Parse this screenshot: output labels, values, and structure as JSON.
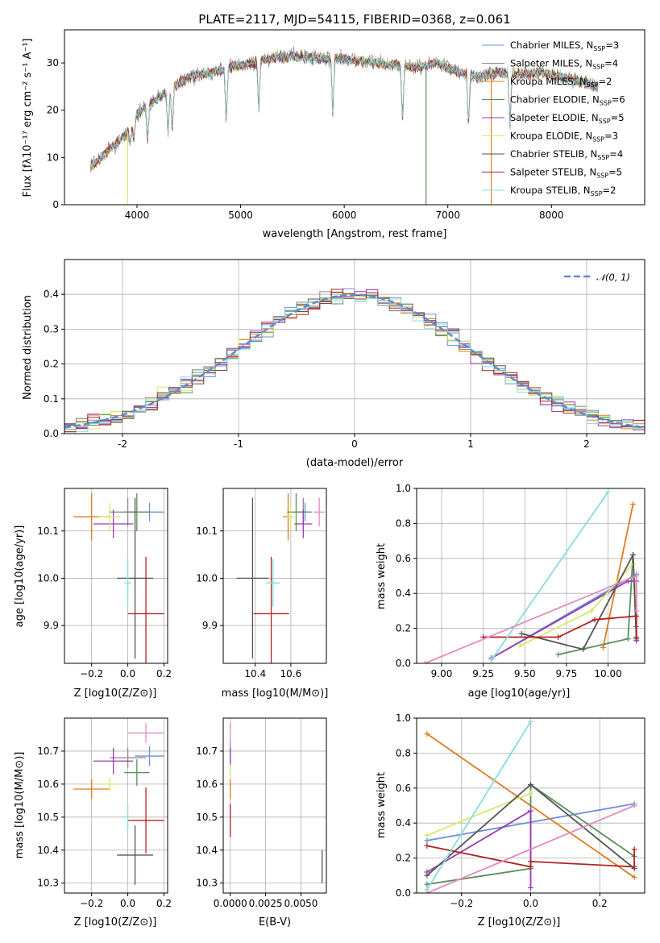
{
  "colors": [
    "#6a8fdc",
    "#8a8a8a",
    "#e07b1f",
    "#5b8f5b",
    "#9b39b0",
    "#d6e86a",
    "#555555",
    "#b22222",
    "#86dce0"
  ],
  "extra_color": "#e58ac0",
  "chart_data": [
    {
      "id": "spectrum",
      "type": "line",
      "title": "PLATE=2117, MJD=54115, FIBERID=0368, z=0.061",
      "xlabel": "wavelength [Angstrom, rest frame]",
      "ylabel": "Flux [fλ10⁻¹⁷ erg cm⁻² s⁻¹ A⁻¹]",
      "xlim": [
        3300,
        8900
      ],
      "ylim": [
        0,
        37
      ],
      "xticks": [
        4000,
        5000,
        6000,
        7000,
        8000
      ],
      "yticks": [
        0,
        10,
        20,
        30
      ],
      "grid": false,
      "legend": "top-right",
      "legend_entries": [
        "Chabrier MILES, NSSP=3",
        "Salpeter MILES, NSSP=4",
        "Kroupa MILES, NSSP=2",
        "Chabrier ELODIE, NSSP=6",
        "Salpeter ELODIE, NSSP=5",
        "Kroupa ELODIE, NSSP=3",
        "Chabrier STELIB, NSSP=4",
        "Salpeter STELIB, NSSP=5",
        "Kroupa STELIB, NSSP=2"
      ],
      "continuum_x": [
        3550,
        3700,
        3900,
        4000,
        4100,
        4300,
        4500,
        4700,
        4900,
        5100,
        5300,
        5500,
        5700,
        5900,
        6100,
        6300,
        6500,
        6700,
        6900,
        7100,
        7300,
        7500,
        7700,
        7900,
        8100,
        8300,
        8450
      ],
      "continuum_y": [
        8,
        11,
        15,
        19,
        21,
        24,
        27,
        28,
        29,
        30,
        31,
        31.5,
        31,
        31,
        30.5,
        30,
        29.5,
        29,
        30,
        28,
        27,
        28,
        27.5,
        28,
        27,
        26,
        25
      ]
    },
    {
      "id": "residuals",
      "type": "line",
      "xlabel": "(data-model)/error",
      "ylabel": "Normed distribution",
      "xlim": [
        -2.5,
        2.5
      ],
      "ylim": [
        0,
        0.5
      ],
      "xticks": [
        -2,
        -1,
        0,
        1,
        2
      ],
      "yticks": [
        0,
        0.1,
        0.2,
        0.3,
        0.4
      ],
      "grid": true,
      "legend": "top-right",
      "legend_entries": [
        "𝒩(0, 1)"
      ]
    },
    {
      "id": "age_vs_Z",
      "type": "scatter",
      "xlabel": "Z [log10(Z/Z⊙)]",
      "ylabel": "age  [log10(age/yr)]",
      "xlim": [
        -0.35,
        0.22
      ],
      "ylim": [
        9.82,
        10.19
      ],
      "xticks": [
        -0.2,
        0.0,
        0.2
      ],
      "yticks": [
        9.9,
        10.0,
        10.1
      ],
      "grid": true,
      "points": [
        {
          "x": 0.12,
          "y": 10.14,
          "xerr": 0.08,
          "yerr": 0.02,
          "c": 0
        },
        {
          "x": 0.0,
          "y": 10.14,
          "xerr": 0.1,
          "yerr": 0.03,
          "c": 1
        },
        {
          "x": -0.2,
          "y": 10.13,
          "xerr": 0.1,
          "yerr": 0.05,
          "c": 2
        },
        {
          "x": 0.05,
          "y": 10.14,
          "xerr": 0.07,
          "yerr": 0.04,
          "c": 3
        },
        {
          "x": -0.08,
          "y": 10.115,
          "xerr": 0.11,
          "yerr": 0.03,
          "c": 4
        },
        {
          "x": -0.1,
          "y": 10.13,
          "xerr": 0.06,
          "yerr": 0.03,
          "c": 5
        },
        {
          "x": 0.04,
          "y": 10.0,
          "xerr": 0.1,
          "yerr": 0.17,
          "c": 6
        },
        {
          "x": 0.1,
          "y": 9.925,
          "xerr": 0.1,
          "yerr": 0.12,
          "c": 7
        },
        {
          "x": 0.0,
          "y": 9.99,
          "xerr": 0.02,
          "yerr": 0.05,
          "c": 8
        }
      ]
    },
    {
      "id": "age_vs_mass",
      "type": "scatter",
      "xlabel": "mass [log10(M/M⊙)]",
      "ylabel": "",
      "xlim": [
        10.22,
        10.8
      ],
      "ylim": [
        9.82,
        10.19
      ],
      "xticks": [
        10.4,
        10.6
      ],
      "yticks": [
        9.9,
        10.0,
        10.1
      ],
      "grid": true,
      "points": [
        {
          "x": 10.68,
          "y": 10.14,
          "xerr": 0.04,
          "yerr": 0.02,
          "c": 0
        },
        {
          "x": 10.67,
          "y": 10.14,
          "xerr": 0.04,
          "yerr": 0.03,
          "c": 1
        },
        {
          "x": 10.585,
          "y": 10.13,
          "xerr": 0.03,
          "yerr": 0.05,
          "c": 2
        },
        {
          "x": 10.63,
          "y": 10.14,
          "xerr": 0.05,
          "yerr": 0.04,
          "c": 3
        },
        {
          "x": 10.67,
          "y": 10.115,
          "xerr": 0.05,
          "yerr": 0.03,
          "c": 4
        },
        {
          "x": 10.6,
          "y": 10.13,
          "xerr": 0.02,
          "yerr": 0.03,
          "c": 5
        },
        {
          "x": 10.76,
          "y": 10.14,
          "xerr": 0.03,
          "yerr": 0.03,
          "c": 9
        },
        {
          "x": 10.385,
          "y": 10.0,
          "xerr": 0.09,
          "yerr": 0.17,
          "c": 6
        },
        {
          "x": 10.49,
          "y": 9.925,
          "xerr": 0.1,
          "yerr": 0.12,
          "c": 7
        },
        {
          "x": 10.5,
          "y": 9.99,
          "xerr": 0.04,
          "yerr": 0.05,
          "c": 8
        }
      ]
    },
    {
      "id": "weight_vs_age",
      "type": "line",
      "xlabel": "age  [log10(age/yr)]",
      "ylabel": "mass weight",
      "xlim": [
        8.85,
        10.22
      ],
      "ylim": [
        0,
        1
      ],
      "xticks": [
        9.0,
        9.25,
        9.5,
        9.75,
        10.0
      ],
      "yticks": [
        0.0,
        0.2,
        0.4,
        0.6,
        0.8,
        1.0
      ],
      "grid": true,
      "series": [
        {
          "c": 0,
          "x": [
            9.3,
            10.17,
            10.17
          ],
          "y": [
            0.03,
            0.51,
            0.13
          ]
        },
        {
          "c": 2,
          "x": [
            9.97,
            10.15
          ],
          "y": [
            0.09,
            0.91
          ]
        },
        {
          "c": 3,
          "x": [
            9.7,
            10.12,
            10.15,
            10.17
          ],
          "y": [
            0.05,
            0.14,
            0.62,
            0.21
          ]
        },
        {
          "c": 4,
          "x": [
            9.3,
            10.12,
            10.17,
            10.17
          ],
          "y": [
            0.03,
            0.47,
            0.47,
            0.13
          ]
        },
        {
          "c": 5,
          "x": [
            9.47,
            9.9,
            10.15,
            10.17
          ],
          "y": [
            0.1,
            0.3,
            0.57,
            0.33
          ]
        },
        {
          "c": 6,
          "x": [
            9.48,
            9.85,
            10.15,
            10.17
          ],
          "y": [
            0.17,
            0.08,
            0.62,
            0.14
          ]
        },
        {
          "c": 7,
          "x": [
            9.25,
            9.7,
            9.92,
            10.17,
            10.17
          ],
          "y": [
            0.15,
            0.15,
            0.25,
            0.27,
            0.15
          ]
        },
        {
          "c": 8,
          "x": [
            9.3,
            10.0
          ],
          "y": [
            0.02,
            0.98
          ]
        },
        {
          "c": 9,
          "x": [
            8.9,
            10.17,
            10.17
          ],
          "y": [
            0.0,
            0.5,
            0.3
          ]
        }
      ]
    },
    {
      "id": "mass_vs_Z",
      "type": "scatter",
      "xlabel": "Z [log10(Z/Z⊙)]",
      "ylabel": "mass [log10(M/M⊙)]",
      "xlim": [
        -0.35,
        0.22
      ],
      "ylim": [
        10.27,
        10.8
      ],
      "xticks": [
        -0.2,
        0.0,
        0.2
      ],
      "yticks": [
        10.3,
        10.4,
        10.5,
        10.6,
        10.7
      ],
      "grid": true,
      "points": [
        {
          "x": 0.12,
          "y": 10.685,
          "xerr": 0.08,
          "yerr": 0.03,
          "c": 0
        },
        {
          "x": 0.0,
          "y": 10.68,
          "xerr": 0.1,
          "yerr": 0.03,
          "c": 1
        },
        {
          "x": -0.2,
          "y": 10.585,
          "xerr": 0.1,
          "yerr": 0.03,
          "c": 2
        },
        {
          "x": 0.05,
          "y": 10.635,
          "xerr": 0.07,
          "yerr": 0.04,
          "c": 3
        },
        {
          "x": -0.08,
          "y": 10.67,
          "xerr": 0.11,
          "yerr": 0.04,
          "c": 4
        },
        {
          "x": -0.1,
          "y": 10.6,
          "xerr": 0.06,
          "yerr": 0.02,
          "c": 5
        },
        {
          "x": 0.1,
          "y": 10.755,
          "xerr": 0.1,
          "yerr": 0.03,
          "c": 9
        },
        {
          "x": 0.04,
          "y": 10.385,
          "xerr": 0.1,
          "yerr": 0.09,
          "c": 6
        },
        {
          "x": 0.1,
          "y": 10.49,
          "xerr": 0.1,
          "yerr": 0.1,
          "c": 7
        },
        {
          "x": 0.0,
          "y": 10.5,
          "xerr": 0.02,
          "yerr": 0.04,
          "c": 8
        }
      ]
    },
    {
      "id": "mass_vs_ebv",
      "type": "scatter",
      "xlabel": "E(B-V)",
      "ylabel": "",
      "xlim": [
        -0.0005,
        0.0068
      ],
      "ylim": [
        10.27,
        10.8
      ],
      "xticks": [
        0.0,
        0.0025,
        0.005
      ],
      "xticklabels": [
        "0.0000",
        "0.0025",
        "0.0050"
      ],
      "yticks": [
        10.3,
        10.4,
        10.5,
        10.6,
        10.7
      ],
      "grid": true,
      "points": [
        {
          "x": 0.0,
          "y": 10.7,
          "xerr": 0,
          "yerr": 0.03,
          "c": 0
        },
        {
          "x": 0.0,
          "y": 10.68,
          "xerr": 0,
          "yerr": 0.03,
          "c": 4
        },
        {
          "x": 0.0,
          "y": 10.62,
          "xerr": 0,
          "yerr": 0.04,
          "c": 5
        },
        {
          "x": 0.0,
          "y": 10.585,
          "xerr": 0,
          "yerr": 0.03,
          "c": 2
        },
        {
          "x": 0.0,
          "y": 10.755,
          "xerr": 0,
          "yerr": 0.03,
          "c": 9
        },
        {
          "x": 0.0,
          "y": 10.5,
          "xerr": 0,
          "yerr": 0.04,
          "c": 8
        },
        {
          "x": 0.0,
          "y": 10.49,
          "xerr": 0,
          "yerr": 0.05,
          "c": 7
        },
        {
          "x": 0.0065,
          "y": 10.35,
          "xerr": 0,
          "yerr": 0.05,
          "c": 6
        }
      ]
    },
    {
      "id": "weight_vs_Z",
      "type": "line",
      "xlabel": "Z [log10(Z/Z⊙)]",
      "ylabel": "mass weight",
      "xlim": [
        -0.33,
        0.33
      ],
      "ylim": [
        0,
        1
      ],
      "xticks": [
        -0.2,
        0.0,
        0.2
      ],
      "yticks": [
        0.0,
        0.2,
        0.4,
        0.6,
        0.8,
        1.0
      ],
      "grid": true,
      "series": [
        {
          "c": 0,
          "x": [
            -0.3,
            0.3
          ],
          "y": [
            0.3,
            0.51
          ]
        },
        {
          "c": 2,
          "x": [
            -0.3,
            0.3
          ],
          "y": [
            0.91,
            0.09
          ]
        },
        {
          "c": 3,
          "x": [
            -0.3,
            0.0,
            0.0,
            0.3
          ],
          "y": [
            0.05,
            0.14,
            0.62,
            0.21
          ]
        },
        {
          "c": 4,
          "x": [
            -0.3,
            0.0,
            0.0
          ],
          "y": [
            0.12,
            0.47,
            0.03
          ]
        },
        {
          "c": 5,
          "x": [
            -0.3,
            0.0
          ],
          "y": [
            0.33,
            0.57
          ]
        },
        {
          "c": 6,
          "x": [
            -0.3,
            0.0,
            0.3
          ],
          "y": [
            0.1,
            0.62,
            0.14
          ]
        },
        {
          "c": 7,
          "x": [
            -0.3,
            0.0,
            0.0,
            0.3,
            0.3
          ],
          "y": [
            0.27,
            0.15,
            0.18,
            0.15,
            0.25
          ]
        },
        {
          "c": 8,
          "x": [
            -0.3,
            0.0
          ],
          "y": [
            0.02,
            0.98
          ]
        },
        {
          "c": 9,
          "x": [
            -0.3,
            0.3
          ],
          "y": [
            0.0,
            0.5
          ]
        }
      ]
    }
  ]
}
